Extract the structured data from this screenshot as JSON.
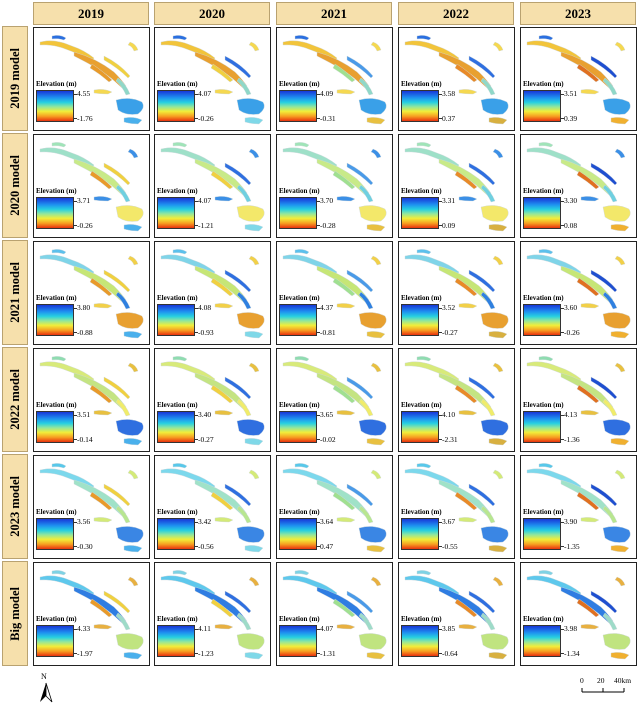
{
  "columns": [
    "2019",
    "2020",
    "2021",
    "2022",
    "2023"
  ],
  "rows": [
    {
      "label": "2019 model",
      "cells": [
        {
          "max": "4.55",
          "min": "-1.76"
        },
        {
          "max": "4.07",
          "min": "-0.26"
        },
        {
          "max": "4.09",
          "min": "-0.31"
        },
        {
          "max": "3.58",
          "min": "0.37"
        },
        {
          "max": "3.51",
          "min": "0.39"
        }
      ]
    },
    {
      "label": "2020 model",
      "cells": [
        {
          "max": "3.71",
          "min": "-0.26"
        },
        {
          "max": "4.07",
          "min": "-1.21"
        },
        {
          "max": "3.70",
          "min": "-0.28"
        },
        {
          "max": "3.31",
          "min": "0.09"
        },
        {
          "max": "3.30",
          "min": "0.08"
        }
      ]
    },
    {
      "label": "2021 model",
      "cells": [
        {
          "max": "3.80",
          "min": "-0.88"
        },
        {
          "max": "4.08",
          "min": "-0.93"
        },
        {
          "max": "4.37",
          "min": "-0.81"
        },
        {
          "max": "3.52",
          "min": "-0.27"
        },
        {
          "max": "3.60",
          "min": "-0.26"
        }
      ]
    },
    {
      "label": "2022 model",
      "cells": [
        {
          "max": "3.51",
          "min": "-0.14"
        },
        {
          "max": "3.40",
          "min": "-0.27"
        },
        {
          "max": "3.65",
          "min": "-0.02"
        },
        {
          "max": "4.10",
          "min": "-2.31"
        },
        {
          "max": "4.13",
          "min": "-1.36"
        }
      ]
    },
    {
      "label": "2023 model",
      "cells": [
        {
          "max": "3.56",
          "min": "-0.30"
        },
        {
          "max": "3.42",
          "min": "-0.56"
        },
        {
          "max": "3.64",
          "min": "0.47"
        },
        {
          "max": "3.67",
          "min": "-0.55"
        },
        {
          "max": "3.90",
          "min": "-1.35"
        }
      ]
    },
    {
      "label": "Big model",
      "cells": [
        {
          "max": "4.33",
          "min": "-1.97"
        },
        {
          "max": "4.11",
          "min": "-1.23"
        },
        {
          "max": "4.07",
          "min": "-1.31"
        },
        {
          "max": "3.85",
          "min": "-0.64"
        },
        {
          "max": "3.98",
          "min": "-1.34"
        }
      ]
    }
  ],
  "legend_title": "Elevation (m)",
  "north_label": "N",
  "scale": {
    "labels": [
      "0",
      "20",
      "40km"
    ]
  },
  "colors": {
    "header_bg": "#f6e0ac",
    "ramp_high": "#1737d8",
    "ramp_mid": "#f2ee3a",
    "ramp_low": "#e8320e"
  }
}
